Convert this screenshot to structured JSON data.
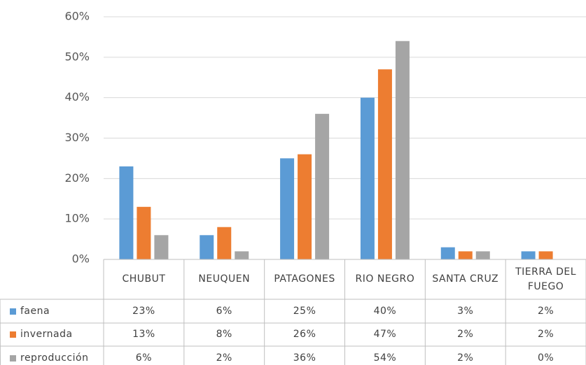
{
  "chart_data": {
    "type": "bar",
    "categories": [
      "CHUBUT",
      "NEUQUEN",
      "PATAGONES",
      "RIO NEGRO",
      "SANTA CRUZ",
      "TIERRA DEL FUEGO"
    ],
    "series": [
      {
        "name": "faena",
        "color": "#5b9bd5",
        "values": [
          23,
          6,
          25,
          40,
          3,
          2
        ],
        "value_labels": [
          "23%",
          "6%",
          "25%",
          "40%",
          "3%",
          "2%"
        ]
      },
      {
        "name": "invernada",
        "color": "#ed7d31",
        "values": [
          13,
          8,
          26,
          47,
          2,
          2
        ],
        "value_labels": [
          "13%",
          "8%",
          "26%",
          "47%",
          "2%",
          "2%"
        ]
      },
      {
        "name": "reproducción",
        "color": "#a5a5a5",
        "values": [
          6,
          2,
          36,
          54,
          2,
          0
        ],
        "value_labels": [
          "6%",
          "2%",
          "36%",
          "54%",
          "2%",
          "0%"
        ]
      }
    ],
    "ylim": [
      0,
      60
    ],
    "yticks": [
      {
        "value": 0,
        "label": "0%"
      },
      {
        "value": 10,
        "label": "10%"
      },
      {
        "value": 20,
        "label": "20%"
      },
      {
        "value": 30,
        "label": "30%"
      },
      {
        "value": 40,
        "label": "40%"
      },
      {
        "value": 50,
        "label": "50%"
      },
      {
        "value": 60,
        "label": "60%"
      }
    ],
    "grid": true,
    "data_table": true
  }
}
